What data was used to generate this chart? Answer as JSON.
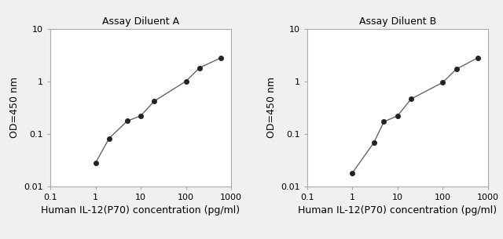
{
  "plot_A": {
    "title": "Assay Diluent A",
    "x": [
      1.0,
      2.0,
      5.0,
      10.0,
      20.0,
      100.0,
      200.0,
      600.0
    ],
    "y": [
      0.028,
      0.082,
      0.175,
      0.22,
      0.42,
      1.0,
      1.8,
      2.8
    ],
    "xlabel": "Human IL-12(P70) concentration (pg/ml)",
    "ylabel": "OD=450 nm",
    "xlim": [
      0.1,
      1000
    ],
    "ylim": [
      0.01,
      10
    ]
  },
  "plot_B": {
    "title": "Assay Diluent B",
    "x": [
      1.0,
      3.0,
      5.0,
      10.0,
      20.0,
      100.0,
      200.0,
      600.0
    ],
    "y": [
      0.018,
      0.068,
      0.17,
      0.22,
      0.46,
      0.95,
      1.7,
      2.8
    ],
    "xlabel": "Human IL-12(P70) concentration (pg/ml)",
    "ylabel": "OD=450 nm",
    "xlim": [
      0.1,
      1000
    ],
    "ylim": [
      0.01,
      10
    ]
  },
  "line_color": "#666666",
  "marker_color": "#222222",
  "bg_color": "#f0f0f0",
  "plot_bg": "#ffffff",
  "title_fontsize": 9,
  "label_fontsize": 9,
  "tick_fontsize": 8
}
